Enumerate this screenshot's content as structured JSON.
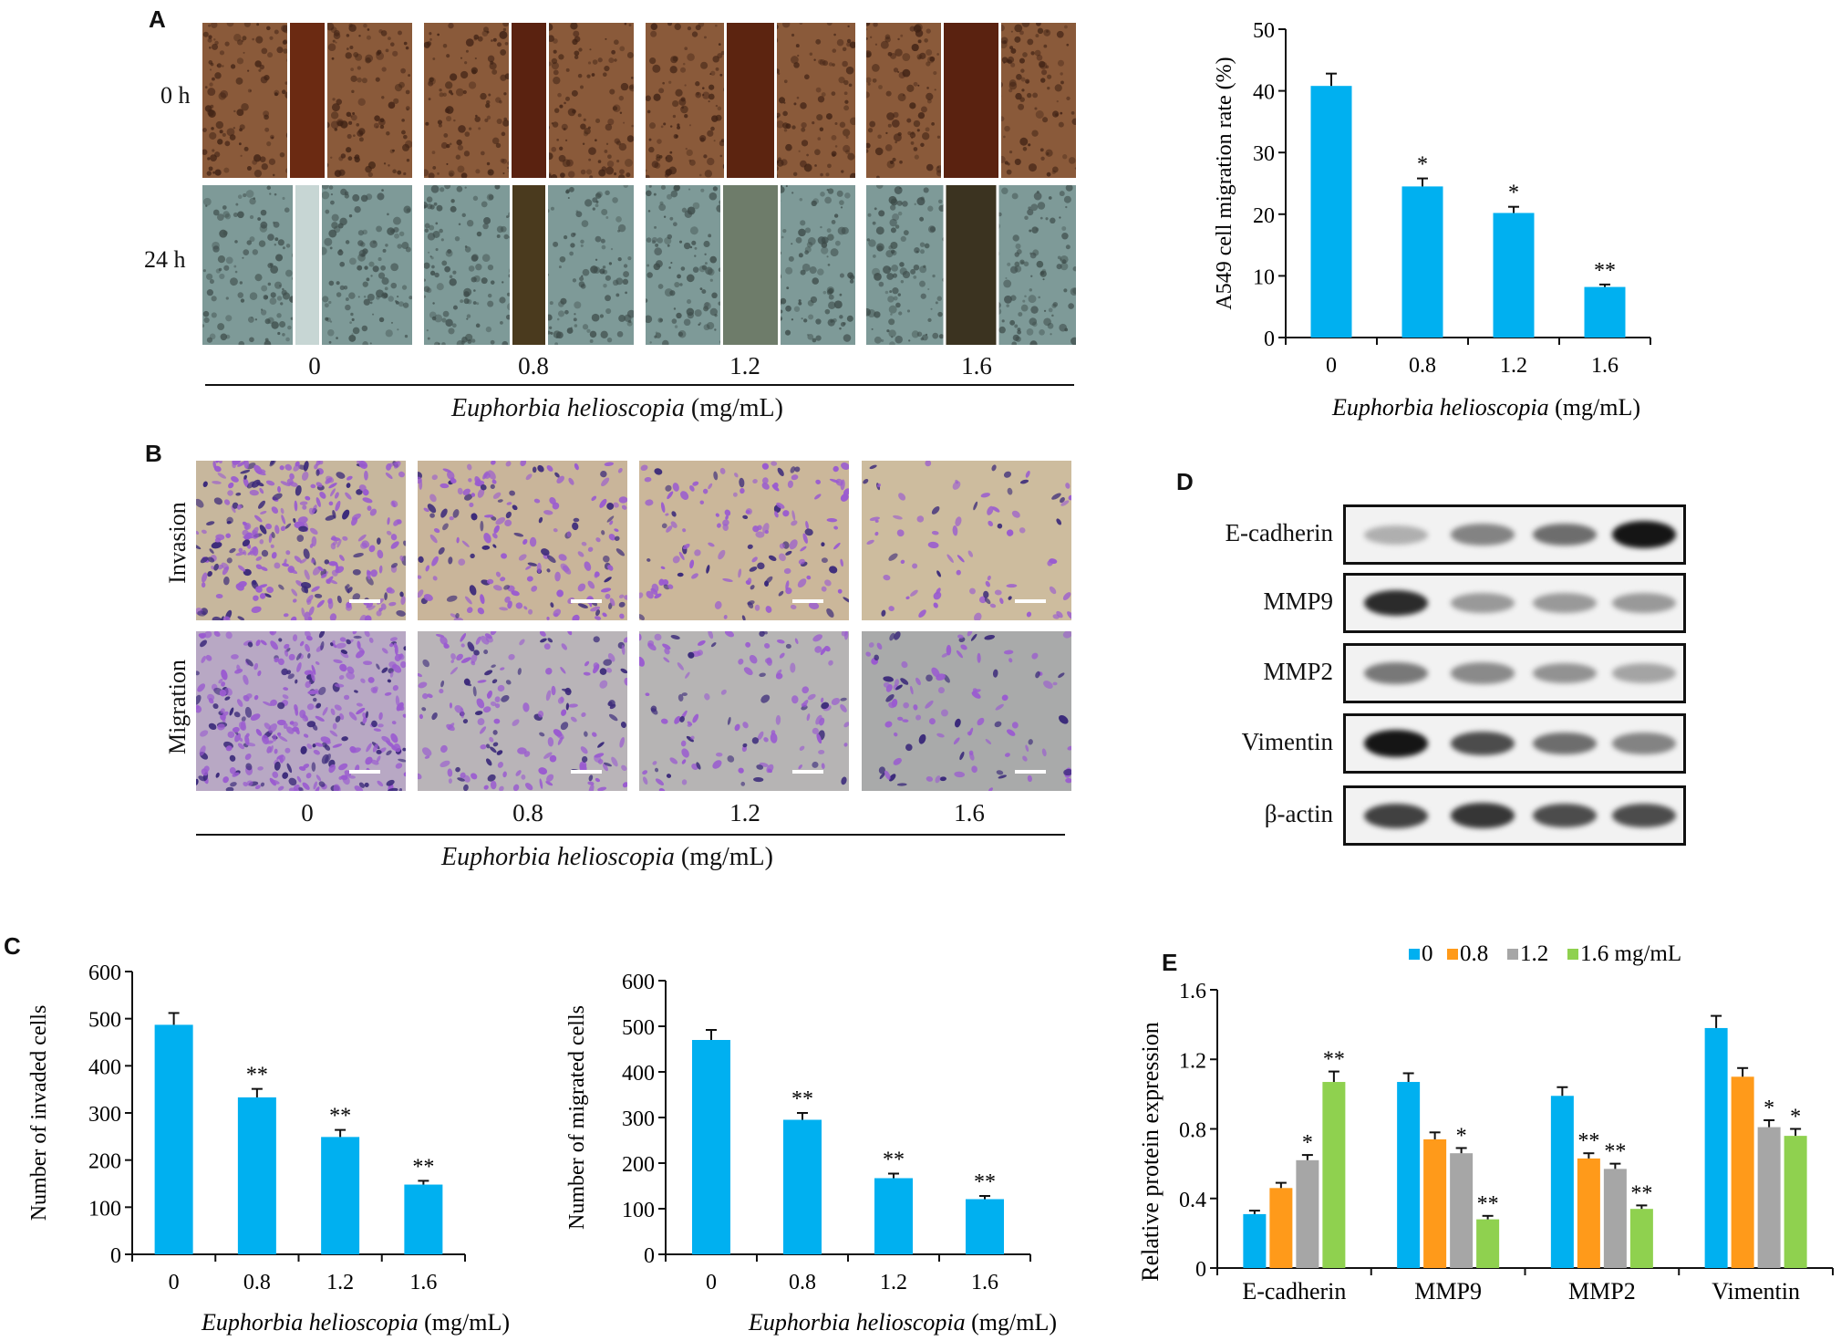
{
  "panels": {
    "a": "A",
    "b": "B",
    "c": "C",
    "d": "D",
    "e": "E"
  },
  "doses": [
    "0",
    "0.8",
    "1.2",
    "1.6"
  ],
  "x_title_italic": "Euphorbia helioscopia",
  "x_title_unit": " (mg/mL)",
  "panel_a": {
    "row_labels": [
      "0 h",
      "24 h"
    ]
  },
  "panel_b": {
    "row_labels": [
      "Invasion",
      "Migration"
    ]
  },
  "panel_d": {
    "proteins": [
      "E-cadherin",
      "MMP9",
      "MMP2",
      "Vimentin",
      "β-actin"
    ]
  },
  "colors": {
    "series_0": "#00b0f0",
    "series_08": "#ff9a1a",
    "series_12": "#a6a6a6",
    "series_16": "#8fd14f"
  },
  "chart_data": [
    {
      "id": "migration-rate",
      "type": "bar",
      "ylabel": "A549 cell migration rate (%)",
      "categories": [
        "0",
        "0.8",
        "1.2",
        "1.6"
      ],
      "values": [
        40.8,
        24.5,
        20.2,
        8.2
      ],
      "errors": [
        2.0,
        1.3,
        1.0,
        0.4
      ],
      "significance": [
        "",
        "*",
        "*",
        "**"
      ],
      "ylim": [
        0,
        50
      ],
      "yticks": [
        0,
        10,
        20,
        30,
        40,
        50
      ]
    },
    {
      "id": "invaded-cells",
      "type": "bar",
      "ylabel": "Number of invaded cells",
      "categories": [
        "0",
        "0.8",
        "1.2",
        "1.6"
      ],
      "values": [
        487,
        333,
        249,
        148
      ],
      "errors": [
        25,
        18,
        15,
        8
      ],
      "significance": [
        "",
        "**",
        "**",
        "**"
      ],
      "ylim": [
        0,
        600
      ],
      "yticks": [
        0,
        100,
        200,
        300,
        400,
        500,
        600
      ]
    },
    {
      "id": "migrated-cells",
      "type": "bar",
      "ylabel": "Number of migrated cells",
      "categories": [
        "0",
        "0.8",
        "1.2",
        "1.6"
      ],
      "values": [
        470,
        295,
        167,
        121
      ],
      "errors": [
        22,
        15,
        10,
        7
      ],
      "significance": [
        "",
        "**",
        "**",
        "**"
      ],
      "ylim": [
        0,
        600
      ],
      "yticks": [
        0,
        100,
        200,
        300,
        400,
        500,
        600
      ]
    },
    {
      "id": "protein-expression",
      "type": "bar",
      "ylabel": "Relative protein expression",
      "categories": [
        "E-cadherin",
        "MMP9",
        "MMP2",
        "Vimentin"
      ],
      "series": [
        {
          "name": "0",
          "values": [
            0.31,
            1.07,
            0.99,
            1.38
          ],
          "errors": [
            0.02,
            0.05,
            0.05,
            0.07
          ],
          "significance": [
            "",
            "",
            "",
            ""
          ]
        },
        {
          "name": "0.8",
          "values": [
            0.46,
            0.74,
            0.63,
            1.1
          ],
          "errors": [
            0.03,
            0.04,
            0.03,
            0.05
          ],
          "significance": [
            "",
            "",
            "**",
            ""
          ]
        },
        {
          "name": "1.2",
          "values": [
            0.62,
            0.66,
            0.57,
            0.81
          ],
          "errors": [
            0.03,
            0.03,
            0.03,
            0.04
          ],
          "significance": [
            "*",
            "*",
            "**",
            "*"
          ]
        },
        {
          "name": "1.6 mg/mL",
          "values": [
            1.07,
            0.28,
            0.34,
            0.76
          ],
          "errors": [
            0.06,
            0.02,
            0.02,
            0.04
          ],
          "significance": [
            "**",
            "**",
            "**",
            "*"
          ]
        }
      ],
      "ylim": [
        0,
        1.6
      ],
      "yticks": [
        "0",
        "0.4",
        "0.8",
        "1.2",
        "1.6"
      ],
      "legend": "top-right"
    }
  ]
}
